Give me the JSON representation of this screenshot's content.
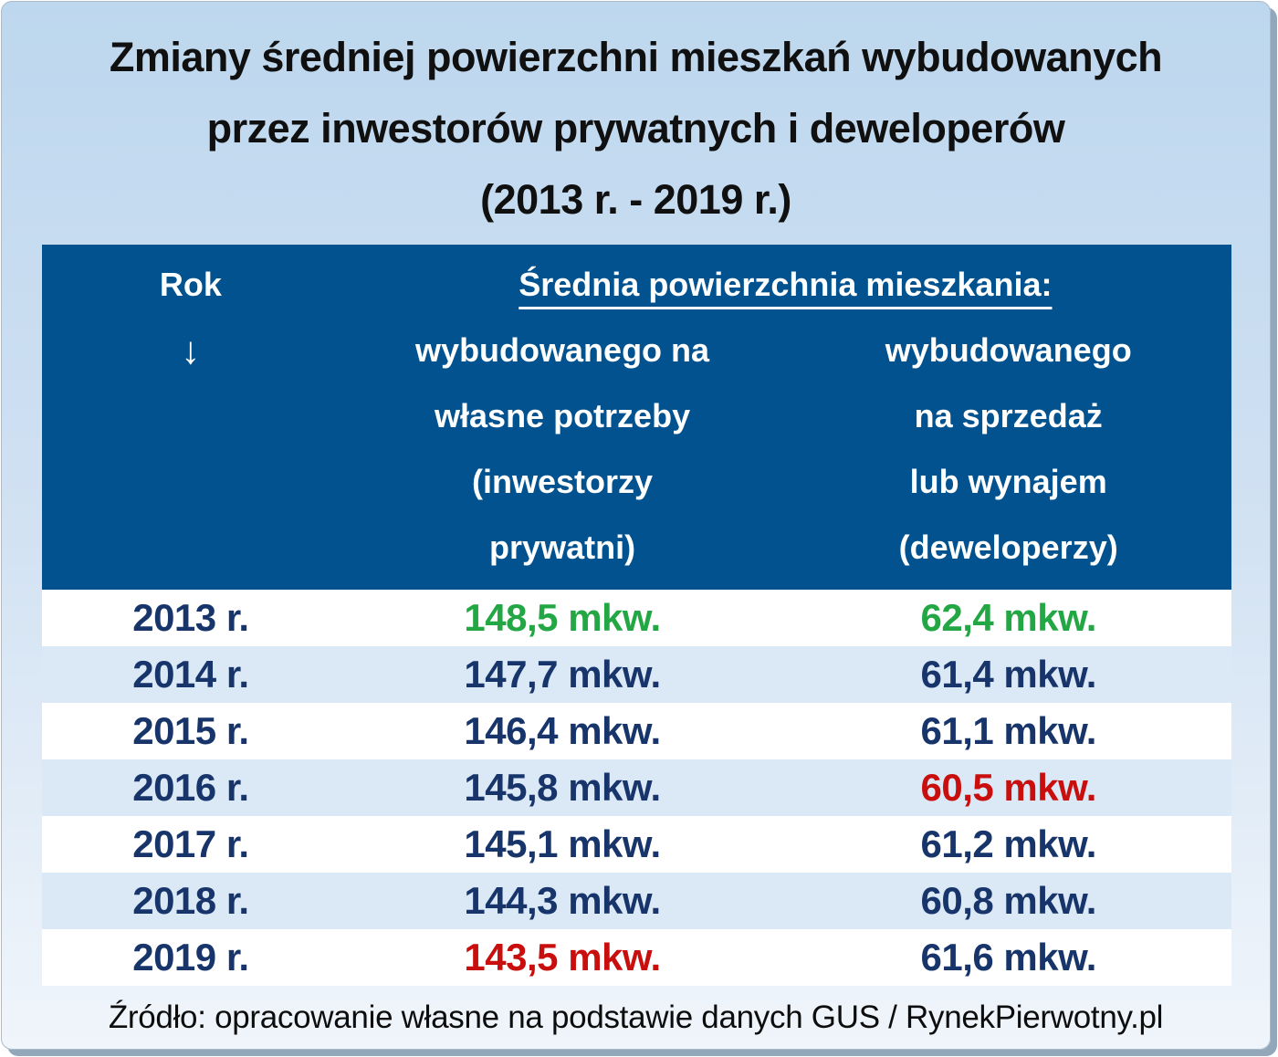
{
  "title": {
    "line1": "Zmiany średniej powierzchni mieszkań wybudowanych",
    "line2": "przez inwestorów prywatnych i deweloperów",
    "line3": "(2013 r. - 2019 r.)"
  },
  "table": {
    "header": {
      "rok_label": "Rok",
      "arrow": "↓",
      "span_title": "Średnia powierzchnia mieszkania:",
      "own_use_lines": [
        "wybudowanego na",
        "własne potrzeby",
        "(inwestorzy",
        "prywatni)"
      ],
      "developer_lines": [
        "wybudowanego",
        "na sprzedaż",
        "lub wynajem",
        "(deweloperzy)"
      ]
    },
    "rows": [
      {
        "year": "2013 r.",
        "own_use": "148,5 mkw.",
        "own_use_color": "green",
        "developer": "62,4 mkw.",
        "developer_color": "green"
      },
      {
        "year": "2014 r.",
        "own_use": "147,7 mkw.",
        "own_use_color": "navy",
        "developer": "61,4 mkw.",
        "developer_color": "navy"
      },
      {
        "year": "2015 r.",
        "own_use": "146,4 mkw.",
        "own_use_color": "navy",
        "developer": "61,1 mkw.",
        "developer_color": "navy"
      },
      {
        "year": "2016 r.",
        "own_use": "145,8 mkw.",
        "own_use_color": "navy",
        "developer": "60,5 mkw.",
        "developer_color": "red"
      },
      {
        "year": "2017 r.",
        "own_use": "145,1 mkw.",
        "own_use_color": "navy",
        "developer": "61,2 mkw.",
        "developer_color": "navy"
      },
      {
        "year": "2018 r.",
        "own_use": "144,3 mkw.",
        "own_use_color": "navy",
        "developer": "60,8 mkw.",
        "developer_color": "navy"
      },
      {
        "year": "2019 r.",
        "own_use": "143,5 mkw.",
        "own_use_color": "red",
        "developer": "61,6 mkw.",
        "developer_color": "navy"
      }
    ]
  },
  "footer": {
    "source": "Źródło: opracowanie własne na podstawie danych GUS / RynekPierwotny.pl"
  },
  "colors": {
    "green": "#23a744",
    "red": "#c90e0e",
    "navy": "#17356b",
    "header_bg": "#02528f",
    "row_alt": "#dbe8f5",
    "card_top": "#bdd7ee",
    "card_bottom": "#f0f5fb"
  },
  "chart_data": {
    "type": "table",
    "title": "Zmiany średniej powierzchni mieszkań wybudowanych przez inwestorów prywatnych i deweloperów (2013 r. - 2019 r.)",
    "categories": [
      "2013 r.",
      "2014 r.",
      "2015 r.",
      "2016 r.",
      "2017 r.",
      "2018 r.",
      "2019 r."
    ],
    "series": [
      {
        "name": "Średnia powierzchnia mieszkania wybudowanego na własne potrzeby (inwestorzy prywatni), mkw.",
        "values": [
          148.5,
          147.7,
          146.4,
          145.8,
          145.1,
          144.3,
          143.5
        ]
      },
      {
        "name": "Średnia powierzchnia mieszkania wybudowanego na sprzedaż lub wynajem (deweloperzy), mkw.",
        "values": [
          62.4,
          61.4,
          61.1,
          60.5,
          61.2,
          60.8,
          61.6
        ]
      }
    ],
    "highlights": {
      "max_green": [
        "2013: 148,5",
        "2013: 62,4"
      ],
      "min_red": [
        "2019: 143,5",
        "2016: 60,5"
      ]
    },
    "source": "Źródło: opracowanie własne na podstawie danych GUS / RynekPierwotny.pl"
  }
}
